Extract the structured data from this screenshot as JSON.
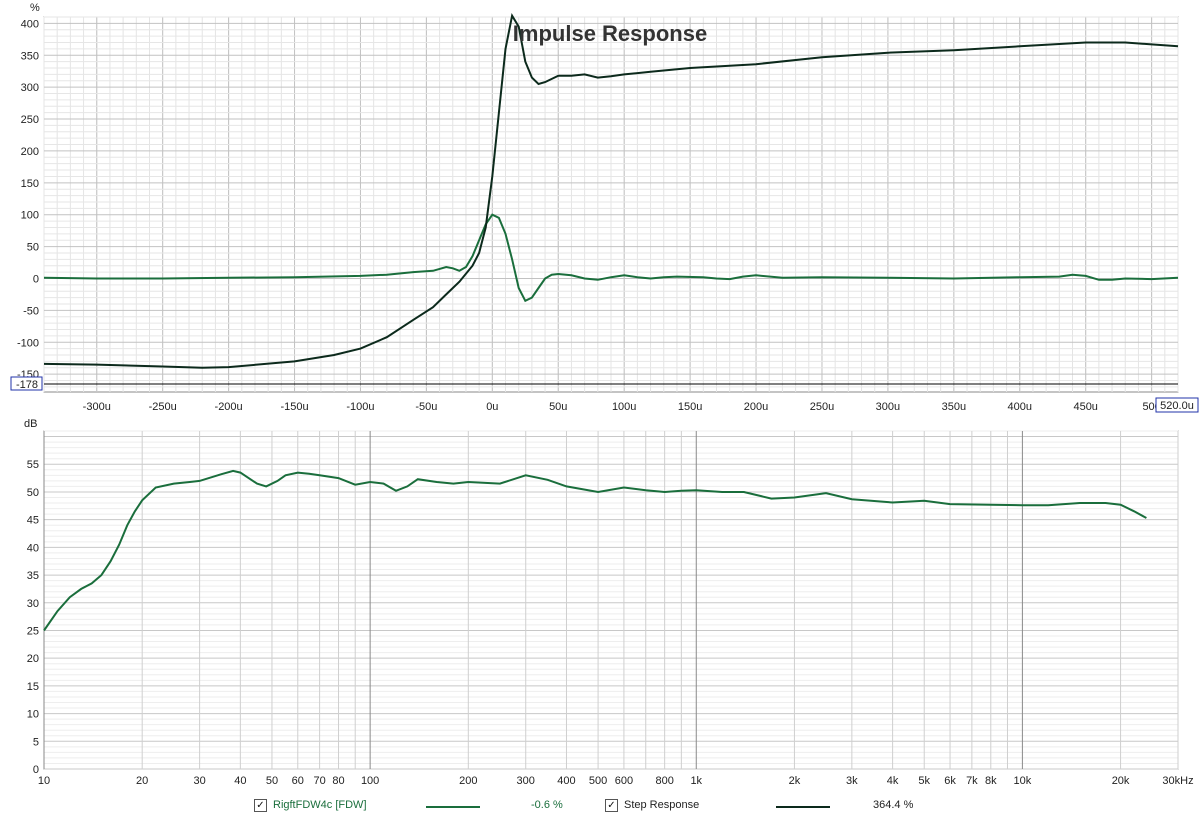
{
  "chart_data": [
    {
      "type": "line",
      "title": "Impulse Response",
      "ylabel": "%",
      "xlabel": "",
      "ylim": [
        -178,
        410
      ],
      "xlim": [
        -340,
        520
      ],
      "grid": true,
      "y_ticks": [
        400,
        350,
        300,
        250,
        200,
        150,
        100,
        50,
        0,
        -50,
        -100,
        -150
      ],
      "y_min_label": "-178",
      "x_ticks": [
        {
          "v": -300,
          "label": "-300u"
        },
        {
          "v": -250,
          "label": "-250u"
        },
        {
          "v": -200,
          "label": "-200u"
        },
        {
          "v": -150,
          "label": "-150u"
        },
        {
          "v": -100,
          "label": "-100u"
        },
        {
          "v": -50,
          "label": "-50u"
        },
        {
          "v": 0,
          "label": "0u"
        },
        {
          "v": 50,
          "label": "50u"
        },
        {
          "v": 100,
          "label": "100u"
        },
        {
          "v": 150,
          "label": "150u"
        },
        {
          "v": 200,
          "label": "200u"
        },
        {
          "v": 250,
          "label": "250u"
        },
        {
          "v": 300,
          "label": "300u"
        },
        {
          "v": 350,
          "label": "350u"
        },
        {
          "v": 400,
          "label": "400u"
        },
        {
          "v": 450,
          "label": "450u"
        },
        {
          "v": 500,
          "label": "500"
        }
      ],
      "x_max_label": "520.0u",
      "series": [
        {
          "name": "RigftFDW4c [FDW]",
          "color": "#1a6e3c",
          "points": [
            [
              -340,
              1
            ],
            [
              -300,
              0
            ],
            [
              -250,
              0
            ],
            [
              -200,
              1
            ],
            [
              -150,
              2
            ],
            [
              -100,
              4
            ],
            [
              -80,
              6
            ],
            [
              -60,
              10
            ],
            [
              -45,
              12
            ],
            [
              -40,
              15
            ],
            [
              -35,
              18
            ],
            [
              -30,
              16
            ],
            [
              -25,
              12
            ],
            [
              -20,
              18
            ],
            [
              -15,
              35
            ],
            [
              -10,
              60
            ],
            [
              -5,
              85
            ],
            [
              0,
              100
            ],
            [
              5,
              95
            ],
            [
              10,
              70
            ],
            [
              15,
              30
            ],
            [
              20,
              -15
            ],
            [
              25,
              -35
            ],
            [
              30,
              -30
            ],
            [
              35,
              -15
            ],
            [
              40,
              0
            ],
            [
              45,
              6
            ],
            [
              50,
              7
            ],
            [
              60,
              5
            ],
            [
              70,
              0
            ],
            [
              80,
              -2
            ],
            [
              90,
              2
            ],
            [
              100,
              5
            ],
            [
              110,
              2
            ],
            [
              120,
              0
            ],
            [
              130,
              2
            ],
            [
              140,
              3
            ],
            [
              160,
              2
            ],
            [
              170,
              0
            ],
            [
              180,
              -1
            ],
            [
              190,
              3
            ],
            [
              200,
              5
            ],
            [
              220,
              1
            ],
            [
              250,
              2
            ],
            [
              300,
              1
            ],
            [
              350,
              0
            ],
            [
              400,
              2
            ],
            [
              430,
              3
            ],
            [
              440,
              6
            ],
            [
              450,
              4
            ],
            [
              460,
              -2
            ],
            [
              470,
              -2
            ],
            [
              480,
              0
            ],
            [
              500,
              -1
            ],
            [
              520,
              1
            ]
          ]
        },
        {
          "name": "Step Response",
          "color": "#0c2a1c",
          "points": [
            [
              -340,
              -134
            ],
            [
              -300,
              -135
            ],
            [
              -250,
              -138
            ],
            [
              -220,
              -140
            ],
            [
              -200,
              -139
            ],
            [
              -150,
              -130
            ],
            [
              -120,
              -120
            ],
            [
              -100,
              -110
            ],
            [
              -80,
              -92
            ],
            [
              -60,
              -65
            ],
            [
              -45,
              -45
            ],
            [
              -35,
              -25
            ],
            [
              -25,
              -5
            ],
            [
              -15,
              20
            ],
            [
              -10,
              40
            ],
            [
              -5,
              80
            ],
            [
              0,
              160
            ],
            [
              5,
              260
            ],
            [
              10,
              360
            ],
            [
              15,
              412
            ],
            [
              20,
              395
            ],
            [
              25,
              340
            ],
            [
              30,
              315
            ],
            [
              35,
              305
            ],
            [
              40,
              308
            ],
            [
              50,
              318
            ],
            [
              60,
              318
            ],
            [
              70,
              320
            ],
            [
              80,
              315
            ],
            [
              90,
              317
            ],
            [
              100,
              320
            ],
            [
              120,
              324
            ],
            [
              150,
              330
            ],
            [
              200,
              336
            ],
            [
              250,
              347
            ],
            [
              300,
              354
            ],
            [
              350,
              358
            ],
            [
              400,
              364
            ],
            [
              450,
              370
            ],
            [
              480,
              370
            ],
            [
              500,
              367
            ],
            [
              520,
              364
            ]
          ]
        }
      ]
    },
    {
      "type": "line",
      "title": "",
      "ylabel": "dB",
      "xlabel": "",
      "xscale": "log",
      "xlim": [
        10,
        30000
      ],
      "ylim": [
        0,
        61
      ],
      "grid": true,
      "y_ticks": [
        55,
        50,
        45,
        40,
        35,
        30,
        25,
        20,
        15,
        10,
        5,
        0
      ],
      "x_ticks": [
        {
          "v": 10,
          "label": "10"
        },
        {
          "v": 20,
          "label": "20"
        },
        {
          "v": 30,
          "label": "30"
        },
        {
          "v": 40,
          "label": "40"
        },
        {
          "v": 50,
          "label": "50"
        },
        {
          "v": 60,
          "label": "60"
        },
        {
          "v": 70,
          "label": "70"
        },
        {
          "v": 80,
          "label": "80"
        },
        {
          "v": 100,
          "label": "100"
        },
        {
          "v": 200,
          "label": "200"
        },
        {
          "v": 300,
          "label": "300"
        },
        {
          "v": 400,
          "label": "400"
        },
        {
          "v": 500,
          "label": "500"
        },
        {
          "v": 600,
          "label": "600"
        },
        {
          "v": 800,
          "label": "800"
        },
        {
          "v": 1000,
          "label": "1k"
        },
        {
          "v": 2000,
          "label": "2k"
        },
        {
          "v": 3000,
          "label": "3k"
        },
        {
          "v": 4000,
          "label": "4k"
        },
        {
          "v": 5000,
          "label": "5k"
        },
        {
          "v": 6000,
          "label": "6k"
        },
        {
          "v": 7000,
          "label": "7k"
        },
        {
          "v": 8000,
          "label": "8k"
        },
        {
          "v": 10000,
          "label": "10k"
        },
        {
          "v": 20000,
          "label": "20k"
        },
        {
          "v": 30000,
          "label": "30kHz"
        }
      ],
      "series": [
        {
          "name": "RigftFDW4c [FDW]",
          "color": "#1a6e3c",
          "points": [
            [
              10,
              25
            ],
            [
              11,
              28.5
            ],
            [
              12,
              31
            ],
            [
              13,
              32.5
            ],
            [
              14,
              33.5
            ],
            [
              15,
              35
            ],
            [
              16,
              37.5
            ],
            [
              17,
              40.5
            ],
            [
              18,
              44
            ],
            [
              19,
              46.5
            ],
            [
              20,
              48.5
            ],
            [
              22,
              50.8
            ],
            [
              25,
              51.5
            ],
            [
              28,
              51.8
            ],
            [
              30,
              52
            ],
            [
              35,
              53.2
            ],
            [
              38,
              53.8
            ],
            [
              40,
              53.5
            ],
            [
              45,
              51.5
            ],
            [
              48,
              51
            ],
            [
              52,
              52
            ],
            [
              55,
              53
            ],
            [
              60,
              53.5
            ],
            [
              65,
              53.3
            ],
            [
              70,
              53
            ],
            [
              80,
              52.5
            ],
            [
              90,
              51.3
            ],
            [
              100,
              51.8
            ],
            [
              110,
              51.5
            ],
            [
              120,
              50.2
            ],
            [
              130,
              51
            ],
            [
              140,
              52.3
            ],
            [
              160,
              51.8
            ],
            [
              180,
              51.5
            ],
            [
              200,
              51.8
            ],
            [
              250,
              51.5
            ],
            [
              300,
              53
            ],
            [
              350,
              52.2
            ],
            [
              400,
              51
            ],
            [
              500,
              50
            ],
            [
              600,
              50.8
            ],
            [
              700,
              50.3
            ],
            [
              800,
              50
            ],
            [
              900,
              50.2
            ],
            [
              1000,
              50.3
            ],
            [
              1200,
              50
            ],
            [
              1400,
              50
            ],
            [
              1700,
              48.8
            ],
            [
              2000,
              49
            ],
            [
              2500,
              49.8
            ],
            [
              3000,
              48.7
            ],
            [
              4000,
              48.1
            ],
            [
              5000,
              48.4
            ],
            [
              6000,
              47.8
            ],
            [
              8000,
              47.7
            ],
            [
              10000,
              47.6
            ],
            [
              12000,
              47.6
            ],
            [
              15000,
              48
            ],
            [
              18000,
              48
            ],
            [
              20000,
              47.7
            ],
            [
              22000,
              46.5
            ],
            [
              24000,
              45.3
            ]
          ]
        }
      ]
    }
  ],
  "legend": {
    "items": [
      {
        "label": "RigftFDW4c [FDW]",
        "value": "-0.6 %",
        "color": "#1a6e3c",
        "checked": "✓"
      },
      {
        "label": "Step Response",
        "value": "364.4 %",
        "color": "#0c2a1c",
        "checked": "✓"
      }
    ]
  }
}
